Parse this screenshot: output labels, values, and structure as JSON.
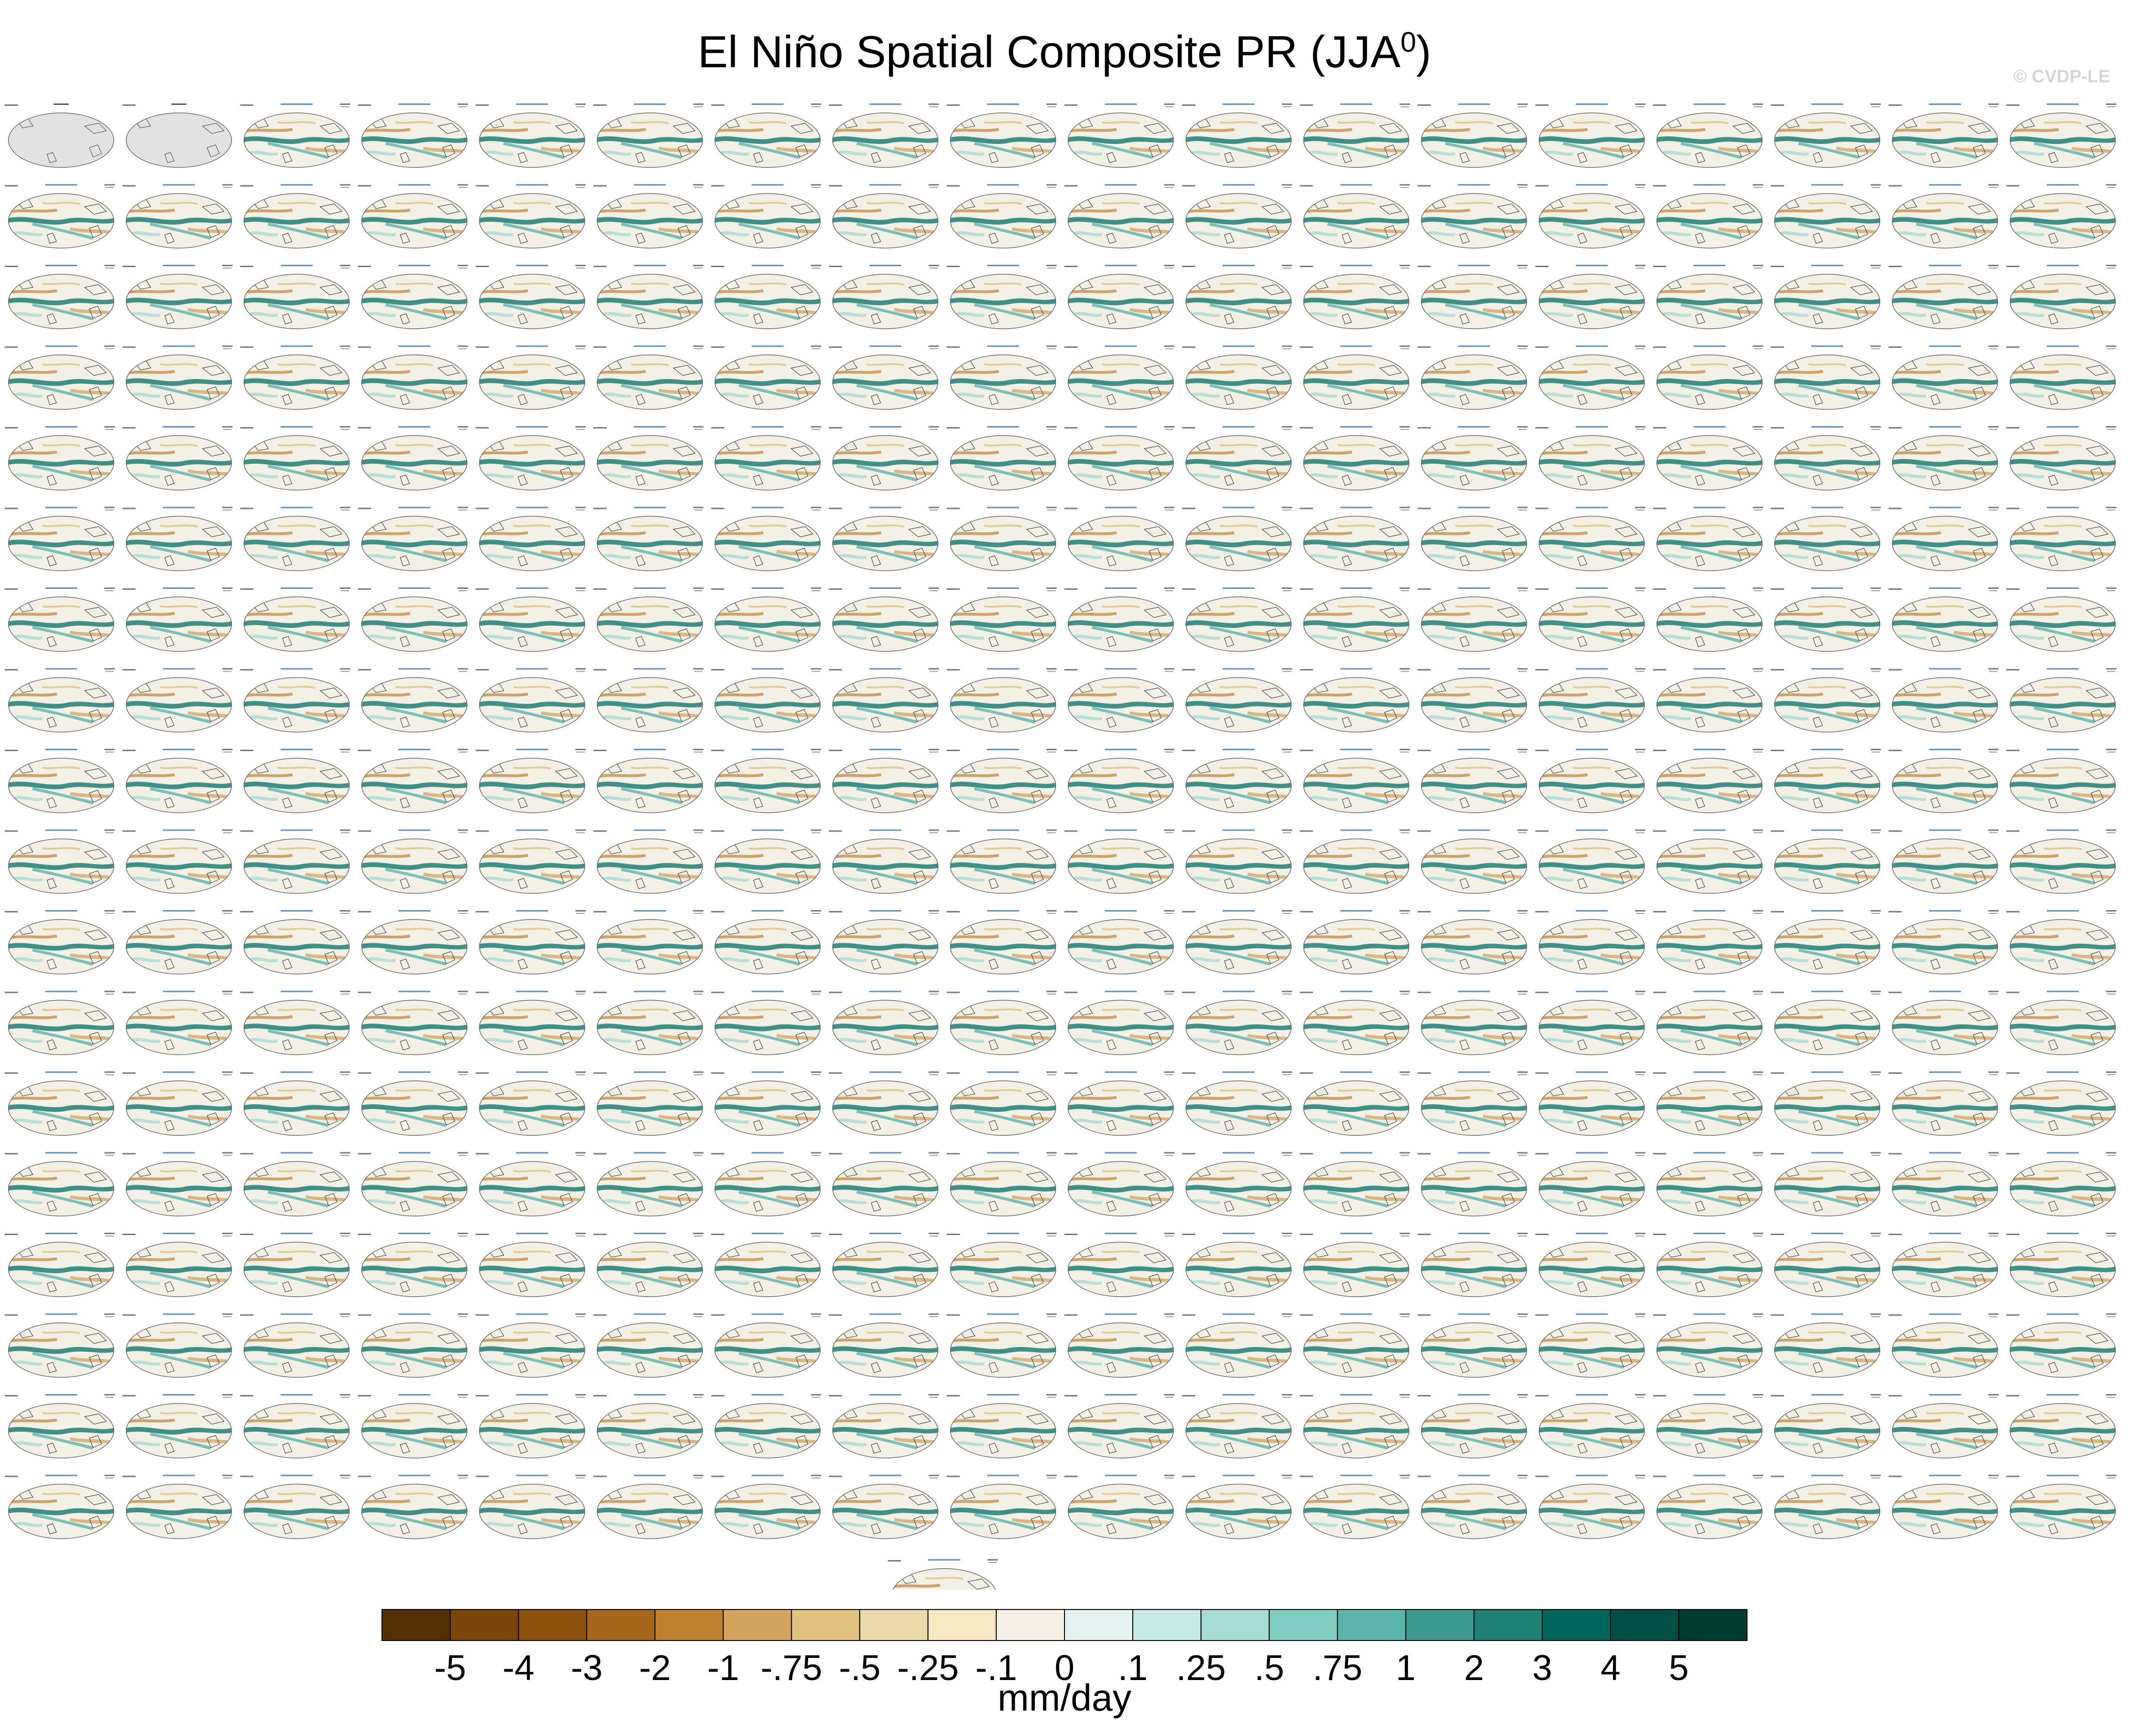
{
  "title": "El Niño Spatial Composite PR (JJA",
  "title_sup": "0",
  "title_close": ")",
  "watermark": "© CVDP-LE",
  "chart_data": {
    "type": "heatmap",
    "title": "El Niño Spatial Composite PR (JJA0)",
    "variable": "PR",
    "season": "JJA0",
    "panel_grid": {
      "rows": 18,
      "cols": 18,
      "extra_row_panels": 1
    },
    "panels_shown_total": 325,
    "observation_panels": [
      "GPCC",
      "GPCC_1"
    ],
    "panel_period_label": "1950-2014",
    "model_ensembles": [
      "CanESM5",
      "CESM2 LENS",
      "CNRM-CM6-1",
      "GISS-E2-1-G",
      "IPSL-CM6A-LR",
      "MIROC-ES2L"
    ],
    "colorbar": {
      "units": "mm/day",
      "tick_labels": [
        "-5",
        "-4",
        "-3",
        "-2",
        "-1",
        "-.75",
        "-.5",
        "-.25",
        "-.1",
        "0",
        ".1",
        ".25",
        ".5",
        ".75",
        "1",
        "2",
        "3",
        "4",
        "5"
      ],
      "colors": [
        "#543005",
        "#7a4609",
        "#8c510a",
        "#a6661b",
        "#bf812d",
        "#d2a45e",
        "#dfc27d",
        "#ecd9a9",
        "#f6e8c3",
        "#f3efe4",
        "#e4f2ef",
        "#c7eae5",
        "#a6dcd3",
        "#80cdc1",
        "#5ab4ac",
        "#3c9b91",
        "#1f8075",
        "#01665e",
        "#004f46",
        "#003c30"
      ]
    }
  }
}
